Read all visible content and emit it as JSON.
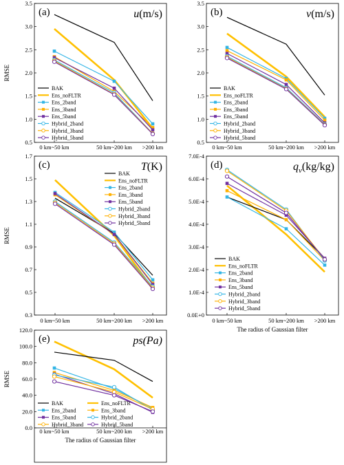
{
  "series_styles": [
    {
      "name": "BAK",
      "color": "#000000",
      "marker": "none",
      "width": 1.2
    },
    {
      "name": "Ens_noFLTR",
      "color": "#FFC000",
      "marker": "none",
      "width": 2.6
    },
    {
      "name": "Ens_2band",
      "color": "#33B5E5",
      "marker": "square",
      "width": 1.2
    },
    {
      "name": "Ens_3band",
      "color": "#FFB000",
      "marker": "square",
      "width": 1.2
    },
    {
      "name": "Ens_5band",
      "color": "#7030A0",
      "marker": "square",
      "width": 1.2
    },
    {
      "name": "Hybrid_2band",
      "color": "#33B5E5",
      "marker": "circle",
      "width": 1.2
    },
    {
      "name": "Hybrid_3band",
      "color": "#FFB000",
      "marker": "circle",
      "width": 1.2
    },
    {
      "name": "Hybrid_5band",
      "color": "#7030A0",
      "marker": "circle",
      "width": 1.2
    }
  ],
  "chart_data": [
    {
      "type": "line",
      "panel": "(a)",
      "title": "u(m/s)",
      "title_italic_part": "u",
      "title_rest": "(m/s)",
      "ylabel": "RMSE",
      "xlabel": "",
      "ylim": [
        0.5,
        3.5
      ],
      "yticks": [
        "0.5",
        "1.0",
        "1.5",
        "2.0",
        "2.5",
        "3.0",
        "3.5"
      ],
      "categories": [
        "0 km~50 km",
        "50 km~200 km",
        ">200 km"
      ],
      "legend_position": "bottom-left",
      "series": [
        {
          "name": "BAK",
          "values": [
            3.26,
            2.66,
            1.4
          ]
        },
        {
          "name": "Ens_noFLTR",
          "values": [
            2.95,
            1.85,
            0.8
          ]
        },
        {
          "name": "Ens_2band",
          "values": [
            2.47,
            1.82,
            0.9
          ]
        },
        {
          "name": "Ens_3band",
          "values": [
            2.35,
            1.6,
            0.82
          ]
        },
        {
          "name": "Ens_5band",
          "values": [
            2.33,
            1.67,
            0.77
          ]
        },
        {
          "name": "Hybrid_2band",
          "values": [
            2.28,
            1.57,
            0.69
          ]
        },
        {
          "name": "Hybrid_3band",
          "values": [
            2.26,
            1.54,
            0.69
          ]
        },
        {
          "name": "Hybrid_5band",
          "values": [
            2.24,
            1.53,
            0.68
          ]
        }
      ]
    },
    {
      "type": "line",
      "panel": "(b)",
      "title": "v(m/s)",
      "title_italic_part": "v",
      "title_rest": "(m/s)",
      "ylabel": "",
      "xlabel": "",
      "ylim": [
        0.5,
        3.5
      ],
      "yticks": [
        "0.5",
        "1.0",
        "1.5",
        "2.0",
        "2.5",
        "3.0",
        "3.5"
      ],
      "categories": [
        "0 km~50 km",
        "50 km~200 km",
        ">200 km"
      ],
      "legend_position": "bottom-left",
      "series": [
        {
          "name": "BAK",
          "values": [
            3.2,
            2.62,
            1.52
          ]
        },
        {
          "name": "Ens_noFLTR",
          "values": [
            2.85,
            1.92,
            1.05
          ]
        },
        {
          "name": "Ens_2band",
          "values": [
            2.55,
            1.88,
            1.02
          ]
        },
        {
          "name": "Ens_3band",
          "values": [
            2.48,
            1.85,
            0.98
          ]
        },
        {
          "name": "Ens_5band",
          "values": [
            2.42,
            1.75,
            0.92
          ]
        },
        {
          "name": "Hybrid_2band",
          "values": [
            2.36,
            1.68,
            0.89
          ]
        },
        {
          "name": "Hybrid_3band",
          "values": [
            2.34,
            1.66,
            0.88
          ]
        },
        {
          "name": "Hybrid_5band",
          "values": [
            2.32,
            1.65,
            0.87
          ]
        }
      ]
    },
    {
      "type": "line",
      "panel": "(c)",
      "title": "T(K)",
      "title_italic_part": "T",
      "title_rest": "(K)",
      "ylabel": "RMSE",
      "xlabel": "",
      "ylim": [
        0.3,
        1.7
      ],
      "yticks": [
        "0.3",
        "0.5",
        "0.7",
        "0.9",
        "1.1",
        "1.3",
        "1.5",
        "1.7"
      ],
      "categories": [
        "0 km~50 km",
        "50 km~200 km",
        ">200 km"
      ],
      "legend_position": "top-right",
      "series": [
        {
          "name": "BAK",
          "values": [
            1.33,
            1.02,
            0.65
          ]
        },
        {
          "name": "Ens_noFLTR",
          "values": [
            1.49,
            1.0,
            0.53
          ]
        },
        {
          "name": "Ens_2band",
          "values": [
            1.38,
            1.03,
            0.61
          ]
        },
        {
          "name": "Ens_3band",
          "values": [
            1.36,
            1.01,
            0.58
          ]
        },
        {
          "name": "Ens_5band",
          "values": [
            1.37,
            1.01,
            0.57
          ]
        },
        {
          "name": "Hybrid_2band",
          "values": [
            1.3,
            0.94,
            0.55
          ]
        },
        {
          "name": "Hybrid_3band",
          "values": [
            1.29,
            0.93,
            0.54
          ]
        },
        {
          "name": "Hybrid_5band",
          "values": [
            1.28,
            0.92,
            0.53
          ]
        }
      ]
    },
    {
      "type": "line",
      "panel": "(d)",
      "title": "qv(kg/kg)",
      "title_italic_part": "q",
      "title_sub": "v",
      "title_rest": "(kg/kg)",
      "ylabel": "",
      "xlabel": "The radius of Gaussian filter",
      "ylim": [
        0,
        0.0007
      ],
      "yticks": [
        "0.0E+0",
        "1.0E-4",
        "2.0E-4",
        "3.0E-4",
        "4.0E-4",
        "5.0E-4",
        "6.0E-4",
        "7.0E-4"
      ],
      "categories": [
        "0 km~50 km",
        "50 km~200 km",
        ">200 km"
      ],
      "legend_position": "bottom-left",
      "series": [
        {
          "name": "BAK",
          "values": [
            0.00052,
            0.00042,
            0.00025
          ]
        },
        {
          "name": "Ens_noFLTR",
          "values": [
            0.00057,
            0.000355,
            0.00019
          ]
        },
        {
          "name": "Ens_2band",
          "values": [
            0.00052,
            0.00038,
            0.00022
          ]
        },
        {
          "name": "Ens_3band",
          "values": [
            0.000548,
            0.00042,
            0.00024
          ]
        },
        {
          "name": "Ens_5band",
          "values": [
            0.00058,
            0.00044,
            0.00025
          ]
        },
        {
          "name": "Hybrid_2band",
          "values": [
            0.00064,
            0.000465,
            0.00024
          ]
        },
        {
          "name": "Hybrid_3band",
          "values": [
            0.000635,
            0.00046,
            0.000245
          ]
        },
        {
          "name": "Hybrid_5band",
          "values": [
            0.00061,
            0.00045,
            0.000245
          ]
        }
      ]
    },
    {
      "type": "line",
      "panel": "(e)",
      "title": "ps(Pa)",
      "title_italic_part": "ps(Pa)",
      "title_rest": "",
      "ylabel": "RMSE",
      "xlabel": "The radius of Gaussian filter",
      "ylim": [
        0,
        120
      ],
      "yticks": [
        "0.0",
        "20.0",
        "40.0",
        "60.0",
        "80.0",
        "100.0",
        "120.0"
      ],
      "categories": [
        "0 km~50 km",
        "50 km~200 km",
        ">200 km"
      ],
      "legend_position": "bottom",
      "series": [
        {
          "name": "BAK",
          "values": [
            93.0,
            83.0,
            57.0
          ]
        },
        {
          "name": "Ens_noFLTR",
          "values": [
            106.0,
            72.0,
            37.0
          ]
        },
        {
          "name": "Ens_2band",
          "values": [
            73.5,
            48.0,
            24.0
          ]
        },
        {
          "name": "Ens_3band",
          "values": [
            68.0,
            46.0,
            25.0
          ]
        },
        {
          "name": "Ens_5band",
          "values": [
            66.0,
            42.0,
            19.0
          ]
        },
        {
          "name": "Hybrid_2band",
          "values": [
            65.0,
            50.0,
            22.0
          ]
        },
        {
          "name": "Hybrid_3band",
          "values": [
            63.0,
            44.0,
            23.0
          ]
        },
        {
          "name": "Hybrid_5band",
          "values": [
            57.0,
            40.0,
            20.0
          ]
        }
      ]
    }
  ]
}
